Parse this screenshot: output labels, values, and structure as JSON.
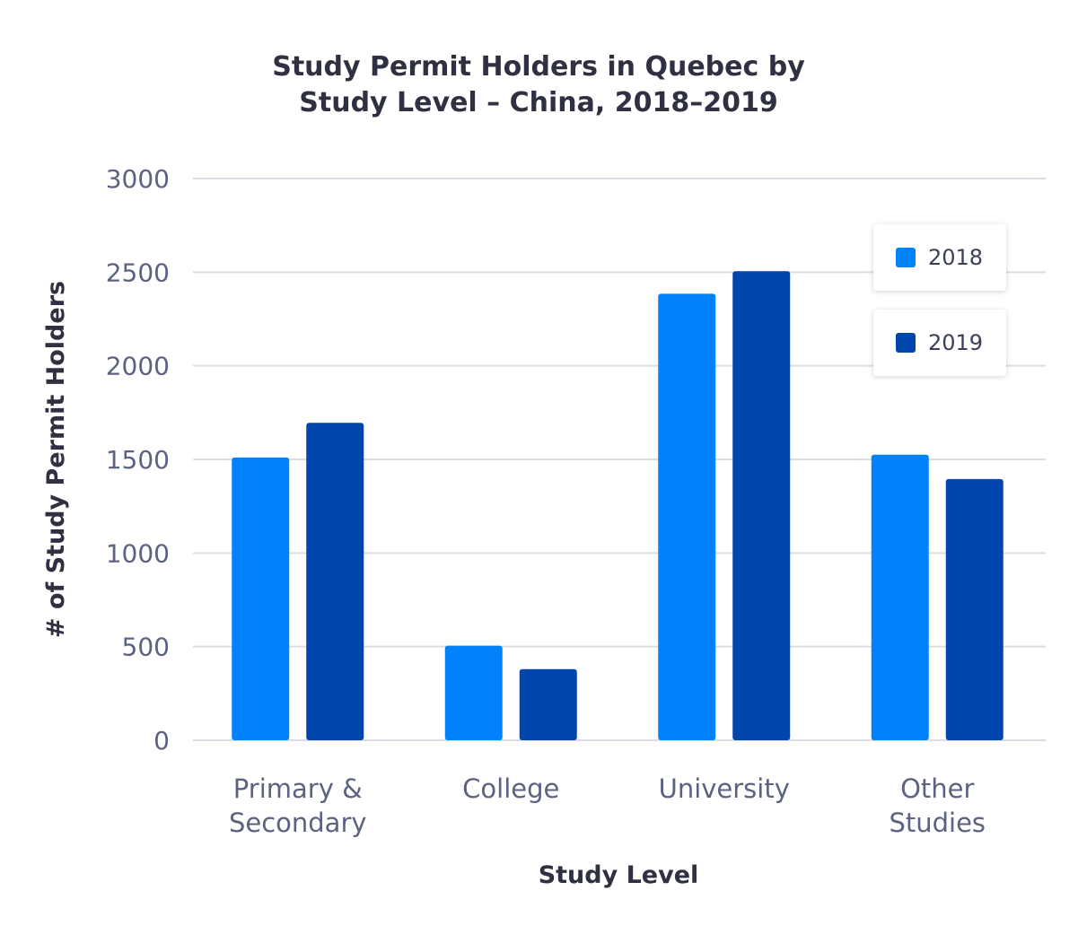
{
  "chart_data": {
    "type": "bar",
    "title": [
      "Study Permit Holders in Quebec by",
      "Study Level – China, 2018–2019"
    ],
    "xlabel": "Study Level",
    "ylabel": "# of Study Permit Holders",
    "categories": [
      [
        "Primary &",
        "Secondary"
      ],
      [
        "College"
      ],
      [
        "University"
      ],
      [
        "Other",
        "Studies"
      ]
    ],
    "series": [
      {
        "name": "2018",
        "color": "#0082fa",
        "values": [
          1510,
          505,
          2385,
          1525
        ]
      },
      {
        "name": "2019",
        "color": "#0046ad",
        "values": [
          1695,
          380,
          2505,
          1395
        ]
      }
    ],
    "ylim": [
      0,
      3000
    ],
    "yticks": [
      "0",
      "500",
      "1000",
      "1500",
      "2000",
      "2500",
      "3000"
    ],
    "grid": true,
    "legend": "top-right"
  }
}
